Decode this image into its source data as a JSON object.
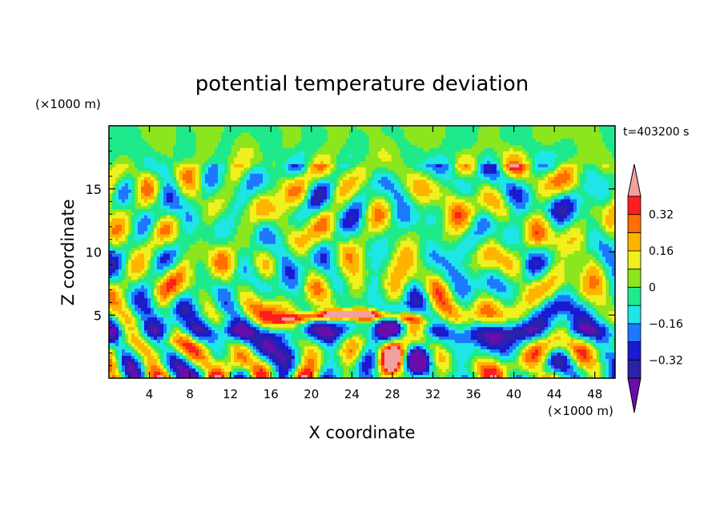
{
  "chart_data": {
    "type": "heatmap",
    "title": "potential temperature deviation",
    "time_label": "t=403200 s",
    "xlabel": "X coordinate",
    "ylabel": "Z coordinate",
    "x_unit": "(×1000 m)",
    "y_unit": "(×1000 m)",
    "xlim": [
      0,
      50
    ],
    "ylim": [
      0,
      20
    ],
    "x_ticks": [
      4,
      8,
      12,
      16,
      20,
      24,
      28,
      32,
      36,
      40,
      44,
      48
    ],
    "y_ticks": [
      5,
      10,
      15
    ],
    "colorbar": {
      "levels": [
        -0.4,
        -0.32,
        -0.24,
        -0.16,
        -0.08,
        0,
        0.08,
        0.16,
        0.24,
        0.32,
        0.4
      ],
      "tick_values": [
        -0.32,
        -0.16,
        0,
        0.16,
        0.32
      ],
      "tick_labels": [
        "−0.32",
        "−0.16",
        "0",
        "0.16",
        "0.32"
      ],
      "colors": [
        "#6a0dad",
        "#2a22a8",
        "#1a1ad0",
        "#1e78ff",
        "#1ee6e6",
        "#1eea8c",
        "#8ce61e",
        "#f0f01e",
        "#ffb400",
        "#ff6e00",
        "#ff1e1e",
        "#f5a0a0"
      ]
    }
  }
}
